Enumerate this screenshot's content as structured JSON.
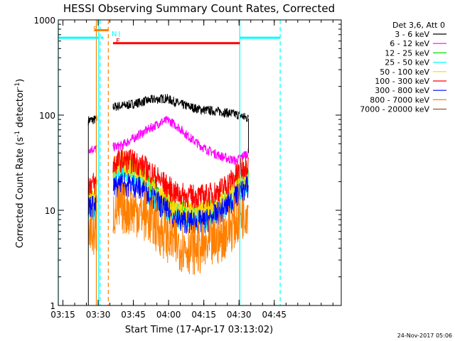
{
  "chart_data": {
    "type": "line",
    "title": "HESSI Observing Summary Count Rates, Corrected",
    "xlabel": "Start Time (17-Apr-17 03:13:02)",
    "ylabel_main": "Corrected Count Rate (s",
    "ylabel_sup1": "-1",
    "ylabel_mid": " detector",
    "ylabel_sup2": "-1",
    "ylabel_end": ")",
    "y_scale": "log",
    "ylim": [
      1,
      1000
    ],
    "xlim_minutes": [
      0,
      120.5
    ],
    "x_start": "03:13:02",
    "x_ticks": [
      {
        "m": 1.97,
        "label": "03:15"
      },
      {
        "m": 16.97,
        "label": "03:30"
      },
      {
        "m": 31.97,
        "label": "03:45"
      },
      {
        "m": 46.97,
        "label": "04:00"
      },
      {
        "m": 61.97,
        "label": "04:15"
      },
      {
        "m": 76.97,
        "label": "04:30"
      },
      {
        "m": 91.97,
        "label": "04:45"
      }
    ],
    "y_ticks": [
      {
        "v": 1,
        "label": "1"
      },
      {
        "v": 10,
        "label": "10"
      },
      {
        "v": 100,
        "label": "100"
      },
      {
        "v": 1000,
        "label": "1000"
      }
    ],
    "legend_title": "Det 3,6, Att 0",
    "legend_position": "right",
    "series": [
      {
        "name": "3 - 6 keV",
        "color": "#000000",
        "points": [
          [
            12.8,
            88
          ],
          [
            16.5,
            90
          ],
          [
            23.3,
            122
          ],
          [
            30,
            128
          ],
          [
            40,
            145
          ],
          [
            46,
            150
          ],
          [
            52,
            130
          ],
          [
            60,
            115
          ],
          [
            70,
            108
          ],
          [
            77,
            100
          ],
          [
            81,
            92
          ]
        ]
      },
      {
        "name": "6 - 12 keV",
        "color": "#ff00ff",
        "points": [
          [
            12.8,
            44
          ],
          [
            16.5,
            44
          ],
          [
            23.3,
            46
          ],
          [
            27,
            48
          ],
          [
            32,
            57
          ],
          [
            38,
            70
          ],
          [
            44,
            85
          ],
          [
            47,
            88
          ],
          [
            51,
            75
          ],
          [
            56,
            58
          ],
          [
            62,
            45
          ],
          [
            68,
            38
          ],
          [
            72,
            35
          ],
          [
            76,
            33
          ],
          [
            79,
            38
          ],
          [
            81,
            40
          ]
        ]
      },
      {
        "name": "12 - 25 keV",
        "color": "#00e000",
        "points": [
          [
            12.8,
            12
          ],
          [
            16.5,
            12
          ],
          [
            23.3,
            26
          ],
          [
            27,
            30
          ],
          [
            33,
            26
          ],
          [
            38,
            19
          ],
          [
            44,
            13
          ],
          [
            50,
            9.5
          ],
          [
            56,
            9
          ],
          [
            62,
            9
          ],
          [
            66,
            10
          ],
          [
            70,
            12
          ],
          [
            74,
            15
          ],
          [
            78,
            20
          ],
          [
            81,
            24
          ]
        ]
      },
      {
        "name": "25 - 50 keV",
        "color": "#00ffff",
        "points": [
          [
            12.8,
            10
          ],
          [
            16.5,
            10
          ],
          [
            23.3,
            22
          ],
          [
            27,
            26
          ],
          [
            33,
            22
          ],
          [
            38,
            16
          ],
          [
            44,
            11
          ],
          [
            50,
            8.5
          ],
          [
            56,
            8
          ],
          [
            62,
            8
          ],
          [
            66,
            9
          ],
          [
            70,
            10.5
          ],
          [
            74,
            13
          ],
          [
            78,
            17
          ],
          [
            81,
            20
          ]
        ]
      },
      {
        "name": "50 - 100 keV",
        "color": "#ffd700",
        "points": [
          [
            12.8,
            14
          ],
          [
            16.5,
            14
          ],
          [
            23.3,
            28
          ],
          [
            27,
            32
          ],
          [
            33,
            27
          ],
          [
            38,
            20
          ],
          [
            44,
            14
          ],
          [
            50,
            10
          ],
          [
            56,
            9.5
          ],
          [
            62,
            9.5
          ],
          [
            66,
            11
          ],
          [
            70,
            13
          ],
          [
            74,
            16
          ],
          [
            78,
            21
          ],
          [
            81,
            24
          ]
        ]
      },
      {
        "name": "100 - 300 keV",
        "color": "#ff0000",
        "points": [
          [
            12.8,
            19
          ],
          [
            16.5,
            19
          ],
          [
            23.3,
            30
          ],
          [
            27,
            34
          ],
          [
            33,
            32
          ],
          [
            38,
            27
          ],
          [
            44,
            20
          ],
          [
            50,
            15
          ],
          [
            56,
            14
          ],
          [
            62,
            14
          ],
          [
            66,
            15
          ],
          [
            70,
            17
          ],
          [
            74,
            21
          ],
          [
            78,
            27
          ],
          [
            81,
            32
          ]
        ]
      },
      {
        "name": "300 - 800 keV",
        "color": "#0000ff",
        "points": [
          [
            12.8,
            11
          ],
          [
            16.5,
            11
          ],
          [
            23.3,
            17
          ],
          [
            27,
            19
          ],
          [
            33,
            18
          ],
          [
            38,
            15
          ],
          [
            44,
            11
          ],
          [
            50,
            8
          ],
          [
            56,
            7.5
          ],
          [
            62,
            7.5
          ],
          [
            66,
            8.5
          ],
          [
            70,
            10
          ],
          [
            74,
            12.5
          ],
          [
            78,
            15.5
          ],
          [
            81,
            18
          ]
        ]
      },
      {
        "name": "800 - 7000 keV",
        "color": "#ff8000",
        "points": [
          [
            12.8,
            6
          ],
          [
            16.5,
            6
          ],
          [
            23.3,
            9.5
          ],
          [
            27,
            10.5
          ],
          [
            33,
            10
          ],
          [
            38,
            8.5
          ],
          [
            44,
            6
          ],
          [
            50,
            4.5
          ],
          [
            56,
            4
          ],
          [
            62,
            4
          ],
          [
            66,
            4.5
          ],
          [
            70,
            5.5
          ],
          [
            74,
            7
          ],
          [
            78,
            9
          ],
          [
            81,
            11
          ]
        ]
      },
      {
        "name": "7000 - 20000 keV",
        "color": "#a0522d",
        "points": []
      }
    ],
    "flag_lines": [
      {
        "m": 0,
        "color": "#00ffff",
        "dash": false
      },
      {
        "m": 16.2,
        "color": "#ff8000",
        "dash": false
      },
      {
        "m": 17.2,
        "color": "#00ffff",
        "dash": false
      },
      {
        "m": 17.8,
        "color": "#00ffff",
        "dash": true
      },
      {
        "m": 21.3,
        "color": "#ff8000",
        "dash": true
      },
      {
        "m": 77.3,
        "color": "#00ffff",
        "dash": false
      },
      {
        "m": 94.5,
        "color": "#00ffff",
        "dash": true
      }
    ],
    "flag_bars": [
      {
        "label": "",
        "color": "#00ffff",
        "from": 0,
        "to": 17.2,
        "v": 650
      },
      {
        "label": "S",
        "color": "#ff8000",
        "from": 15.3,
        "to": 21.3,
        "v": 780
      },
      {
        "label": "N",
        "color": "#00ffff",
        "from": 18.2,
        "to": 19.2,
        "v": 650
      },
      {
        "label": "F",
        "color": "#ff0000",
        "from": 23.3,
        "to": 77.3,
        "v": 570
      },
      {
        "label": "",
        "color": "#00ffff",
        "from": 77.3,
        "to": 94.5,
        "v": 650
      }
    ],
    "footer_date": "24-Nov-2017 05:06"
  }
}
